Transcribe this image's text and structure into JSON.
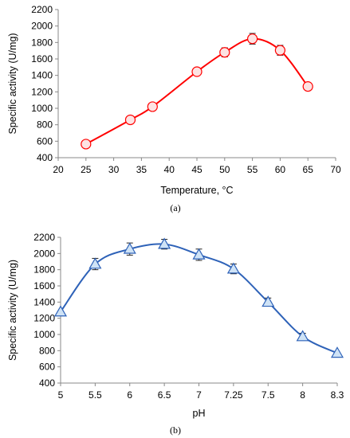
{
  "chart_data": [
    {
      "type": "scatter",
      "panel_label": "(a)",
      "xlabel": "Temperature, °C",
      "ylabel": "Specific activity (U/mg)",
      "xlim": [
        20,
        70
      ],
      "ylim": [
        400,
        2200
      ],
      "xticks": [
        20,
        25,
        30,
        35,
        40,
        45,
        50,
        55,
        60,
        65,
        70
      ],
      "yticks": [
        400,
        600,
        800,
        1000,
        1200,
        1400,
        1600,
        1800,
        2000,
        2200
      ],
      "grid": false,
      "series": [
        {
          "x": [
            25,
            33,
            37,
            45,
            50,
            55,
            60,
            65
          ],
          "y": [
            565,
            860,
            1020,
            1445,
            1680,
            1845,
            1705,
            1265
          ],
          "error": [
            0,
            0,
            0,
            40,
            55,
            65,
            60,
            0
          ],
          "marker": "circle",
          "line": "smooth",
          "color": "#ff0000",
          "marker_fill": "#fde3e3"
        }
      ]
    },
    {
      "type": "scatter",
      "panel_label": "(b)",
      "xlabel": "pH",
      "ylabel": "Specific activity (U/mg)",
      "categories": [
        "5",
        "5.5",
        "6",
        "6.5",
        "7",
        "7.25",
        "7.5",
        "8",
        "8.3"
      ],
      "ylim": [
        400,
        2200
      ],
      "yticks": [
        400,
        600,
        800,
        1000,
        1200,
        1400,
        1600,
        1800,
        2000,
        2200
      ],
      "grid": false,
      "series": [
        {
          "y": [
            1280,
            1870,
            2055,
            2115,
            1985,
            1810,
            1400,
            975,
            770
          ],
          "error": [
            0,
            70,
            75,
            60,
            70,
            60,
            50,
            40,
            0
          ],
          "marker": "triangle",
          "line": "smooth",
          "color": "#2e62b8",
          "marker_fill": "#cfe3f6"
        }
      ]
    }
  ]
}
